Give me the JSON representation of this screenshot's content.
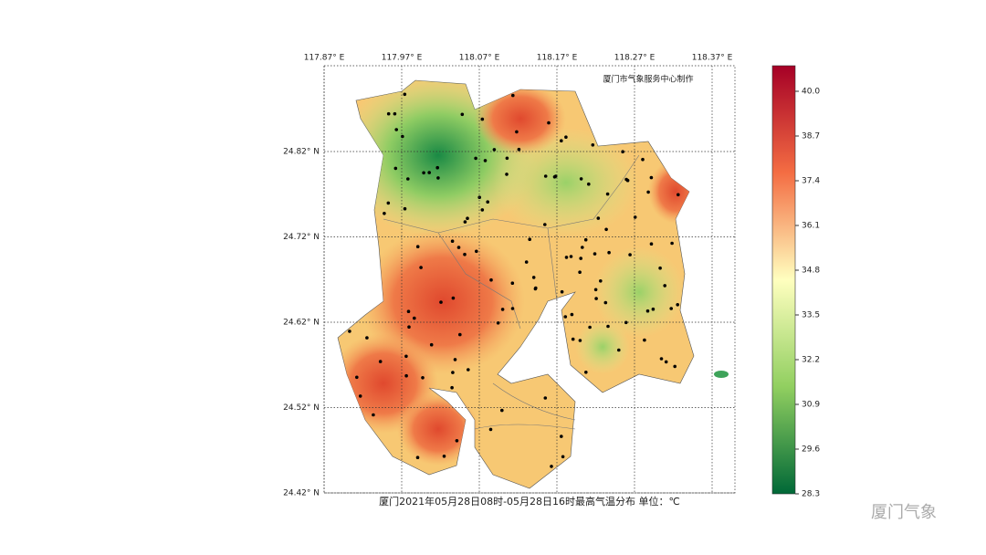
{
  "map": {
    "credit": "厦门市气象服务中心制作",
    "title": "厦门2021年05月28日08时-05月28日16时最高气温分布 单位：℃",
    "lon_labels": [
      "117.87° E",
      "117.97° E",
      "118.07° E",
      "118.17° E",
      "118.27° E",
      "118.37° E"
    ],
    "lat_labels": [
      "24.82° N",
      "24.72° N",
      "24.62° N",
      "24.52° N",
      "24.42° N"
    ],
    "colorbar": {
      "ticks": [
        28.3,
        29.6,
        30.9,
        32.2,
        33.5,
        34.8,
        36.1,
        37.4,
        38.7,
        {
          "value": 40,
          "label": "40.0"
        }
      ]
    }
  },
  "watermark": "厦门气象"
}
